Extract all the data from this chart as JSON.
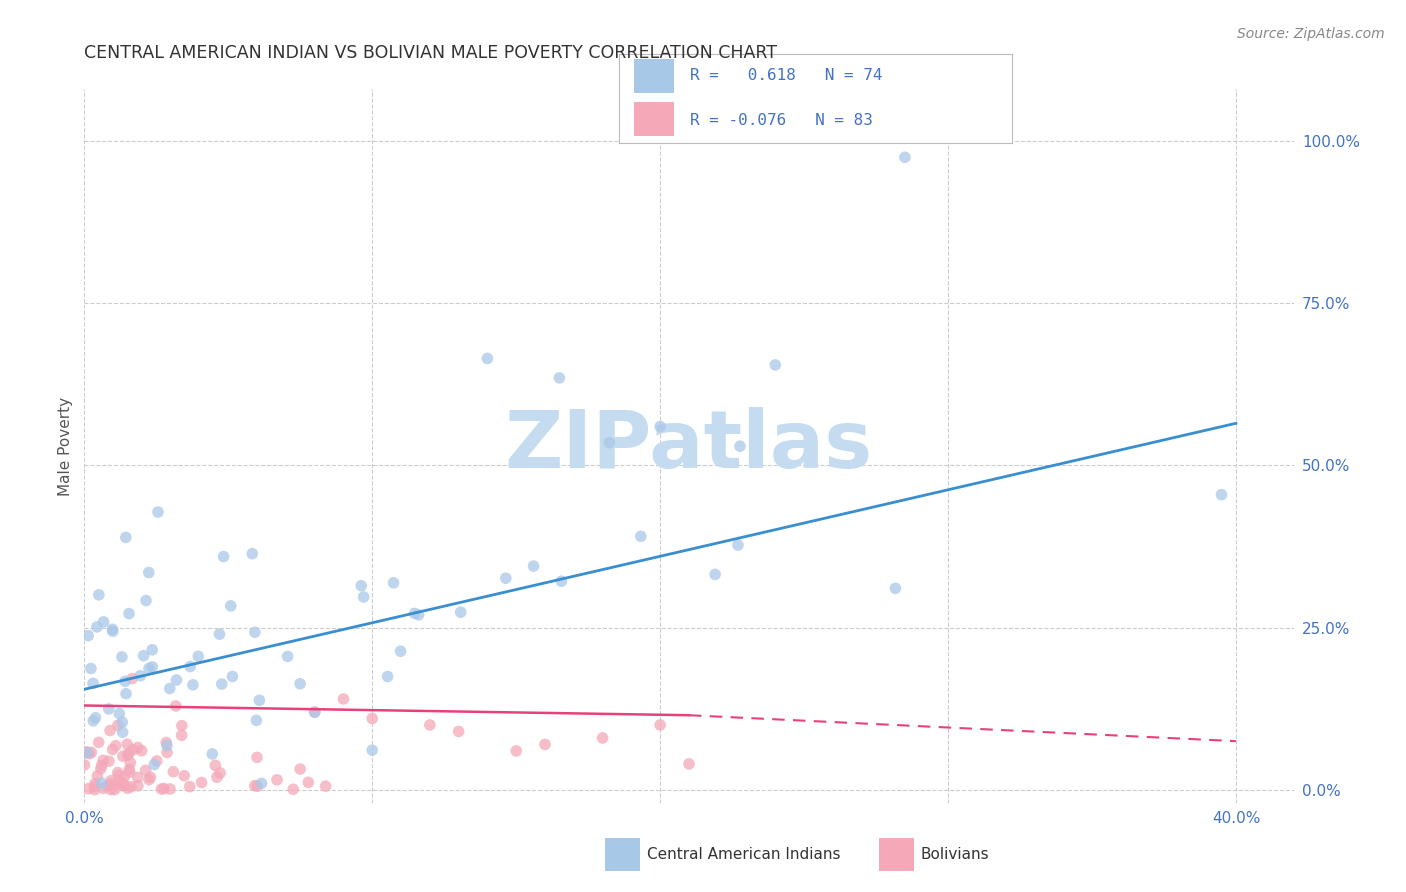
{
  "title": "CENTRAL AMERICAN INDIAN VS BOLIVIAN MALE POVERTY CORRELATION CHART",
  "source": "Source: ZipAtlas.com",
  "ylabel": "Male Poverty",
  "xlim": [
    0.0,
    0.42
  ],
  "ylim": [
    -0.02,
    1.08
  ],
  "yticks": [
    0.0,
    0.25,
    0.5,
    0.75,
    1.0
  ],
  "xticks": [
    0.0,
    0.1,
    0.2,
    0.3,
    0.4
  ],
  "blue_color": "#A8C8E8",
  "pink_color": "#F4A8B8",
  "blue_line_color": "#3A8FD0",
  "pink_line_color": "#E8407A",
  "grid_color": "#CCCCCC",
  "watermark": "ZIPatlas",
  "watermark_color": "#C5DCF0",
  "legend_R1": "R =   0.618",
  "legend_N1": "N = 74",
  "legend_R2": "R = -0.076",
  "legend_N2": "N = 83",
  "legend_label1": "Central American Indians",
  "legend_label2": "Bolivians",
  "blue_trend_x0": 0.0,
  "blue_trend_y0": 0.155,
  "blue_trend_x1": 0.4,
  "blue_trend_y1": 0.565,
  "pink_trend_x0": 0.0,
  "pink_trend_y0": 0.13,
  "pink_trend_xbreak": 0.21,
  "pink_trend_ybreak": 0.115,
  "pink_trend_x1": 0.4,
  "pink_trend_y1": 0.075,
  "tick_color": "#4472C4",
  "ylabel_color": "#555555",
  "title_color": "#333333",
  "source_color": "#888888"
}
